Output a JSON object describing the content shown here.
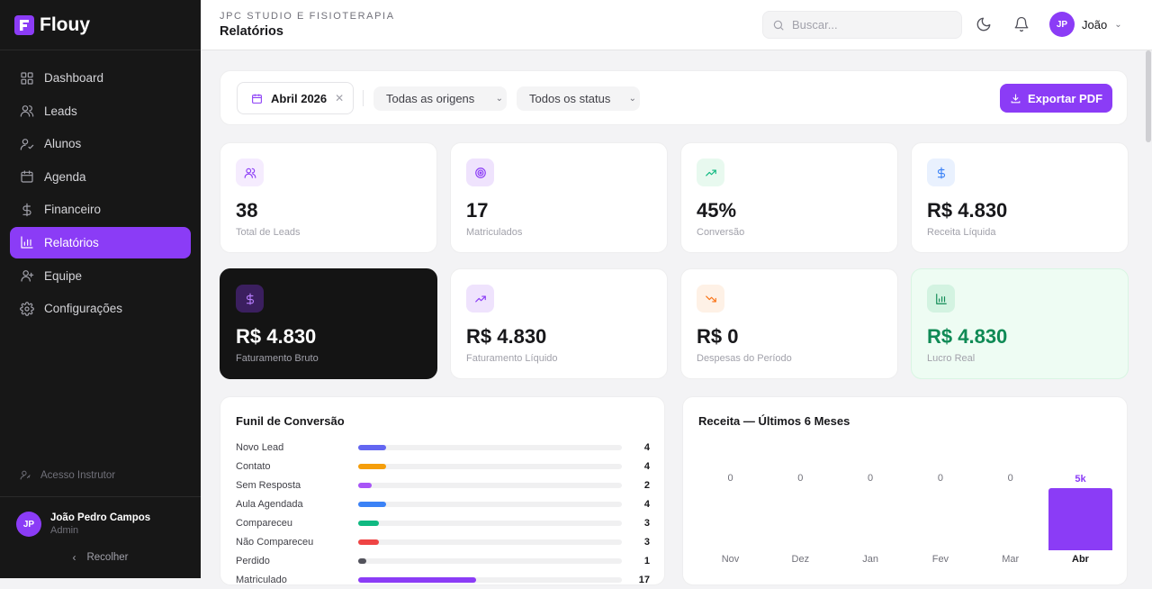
{
  "app": {
    "name": "Flouy"
  },
  "sidebar": {
    "items": [
      {
        "label": "Dashboard",
        "icon": "dashboard-icon",
        "active": false
      },
      {
        "label": "Leads",
        "icon": "users-icon",
        "active": false
      },
      {
        "label": "Alunos",
        "icon": "user-check-icon",
        "active": false
      },
      {
        "label": "Agenda",
        "icon": "calendar-icon",
        "active": false
      },
      {
        "label": "Financeiro",
        "icon": "dollar-icon",
        "active": false
      },
      {
        "label": "Relatórios",
        "icon": "bar-chart-icon",
        "active": true
      },
      {
        "label": "Equipe",
        "icon": "team-icon",
        "active": false
      },
      {
        "label": "Configurações",
        "icon": "gear-icon",
        "active": false
      }
    ],
    "instructor_access": "Acesso Instrutor",
    "user": {
      "initials": "JP",
      "name": "João Pedro Campos",
      "role": "Admin"
    },
    "collapse_label": "Recolher"
  },
  "header": {
    "eyebrow": "JPC STUDIO E FISIOTERAPIA",
    "title": "Relatórios",
    "search_placeholder": "Buscar...",
    "user": {
      "initials": "JP",
      "name": "João"
    }
  },
  "filters": {
    "date": "Abril 2026",
    "origin": "Todas as origens",
    "status": "Todos os status",
    "export_label": "Exportar PDF"
  },
  "stats_row1": [
    {
      "value": "38",
      "label": "Total de Leads",
      "icon": "users-icon"
    },
    {
      "value": "17",
      "label": "Matriculados",
      "icon": "target-icon"
    },
    {
      "value": "45%",
      "label": "Conversão",
      "icon": "trending-up-icon"
    },
    {
      "value": "R$ 4.830",
      "label": "Receita Líquida",
      "icon": "dollar-icon"
    }
  ],
  "stats_row2": [
    {
      "value": "R$ 4.830",
      "label": "Faturamento Bruto",
      "icon": "dollar-icon"
    },
    {
      "value": "R$ 4.830",
      "label": "Faturamento Líquido",
      "icon": "trending-up-icon"
    },
    {
      "value": "R$ 0",
      "label": "Despesas do Período",
      "icon": "trending-down-icon"
    },
    {
      "value": "R$ 4.830",
      "label": "Lucro Real",
      "icon": "bar-chart-icon"
    }
  ],
  "funnel": {
    "title": "Funil de Conversão",
    "max": 38,
    "stages": [
      {
        "label": "Novo Lead",
        "value": 4,
        "color": "#6366f1"
      },
      {
        "label": "Contato",
        "value": 4,
        "color": "#f59e0b"
      },
      {
        "label": "Sem Resposta",
        "value": 2,
        "color": "#a855f7"
      },
      {
        "label": "Aula Agendada",
        "value": 4,
        "color": "#3b82f6"
      },
      {
        "label": "Compareceu",
        "value": 3,
        "color": "#10b981"
      },
      {
        "label": "Não Compareceu",
        "value": 3,
        "color": "#ef4444"
      },
      {
        "label": "Perdido",
        "value": 1,
        "color": "#52525b"
      },
      {
        "label": "Matriculado",
        "value": 17,
        "color": "#8b3cf6"
      }
    ]
  },
  "revenue": {
    "title": "Receita — Últimos 6 Meses",
    "accent": "#8b3cf6"
  },
  "chart_data": {
    "type": "bar",
    "title": "Receita — Últimos 6 Meses",
    "categories": [
      "Nov",
      "Dez",
      "Jan",
      "Fev",
      "Mar",
      "Abr"
    ],
    "values": [
      0,
      0,
      0,
      0,
      0,
      4830
    ],
    "value_labels": [
      "0",
      "0",
      "0",
      "0",
      "0",
      "5k"
    ]
  }
}
